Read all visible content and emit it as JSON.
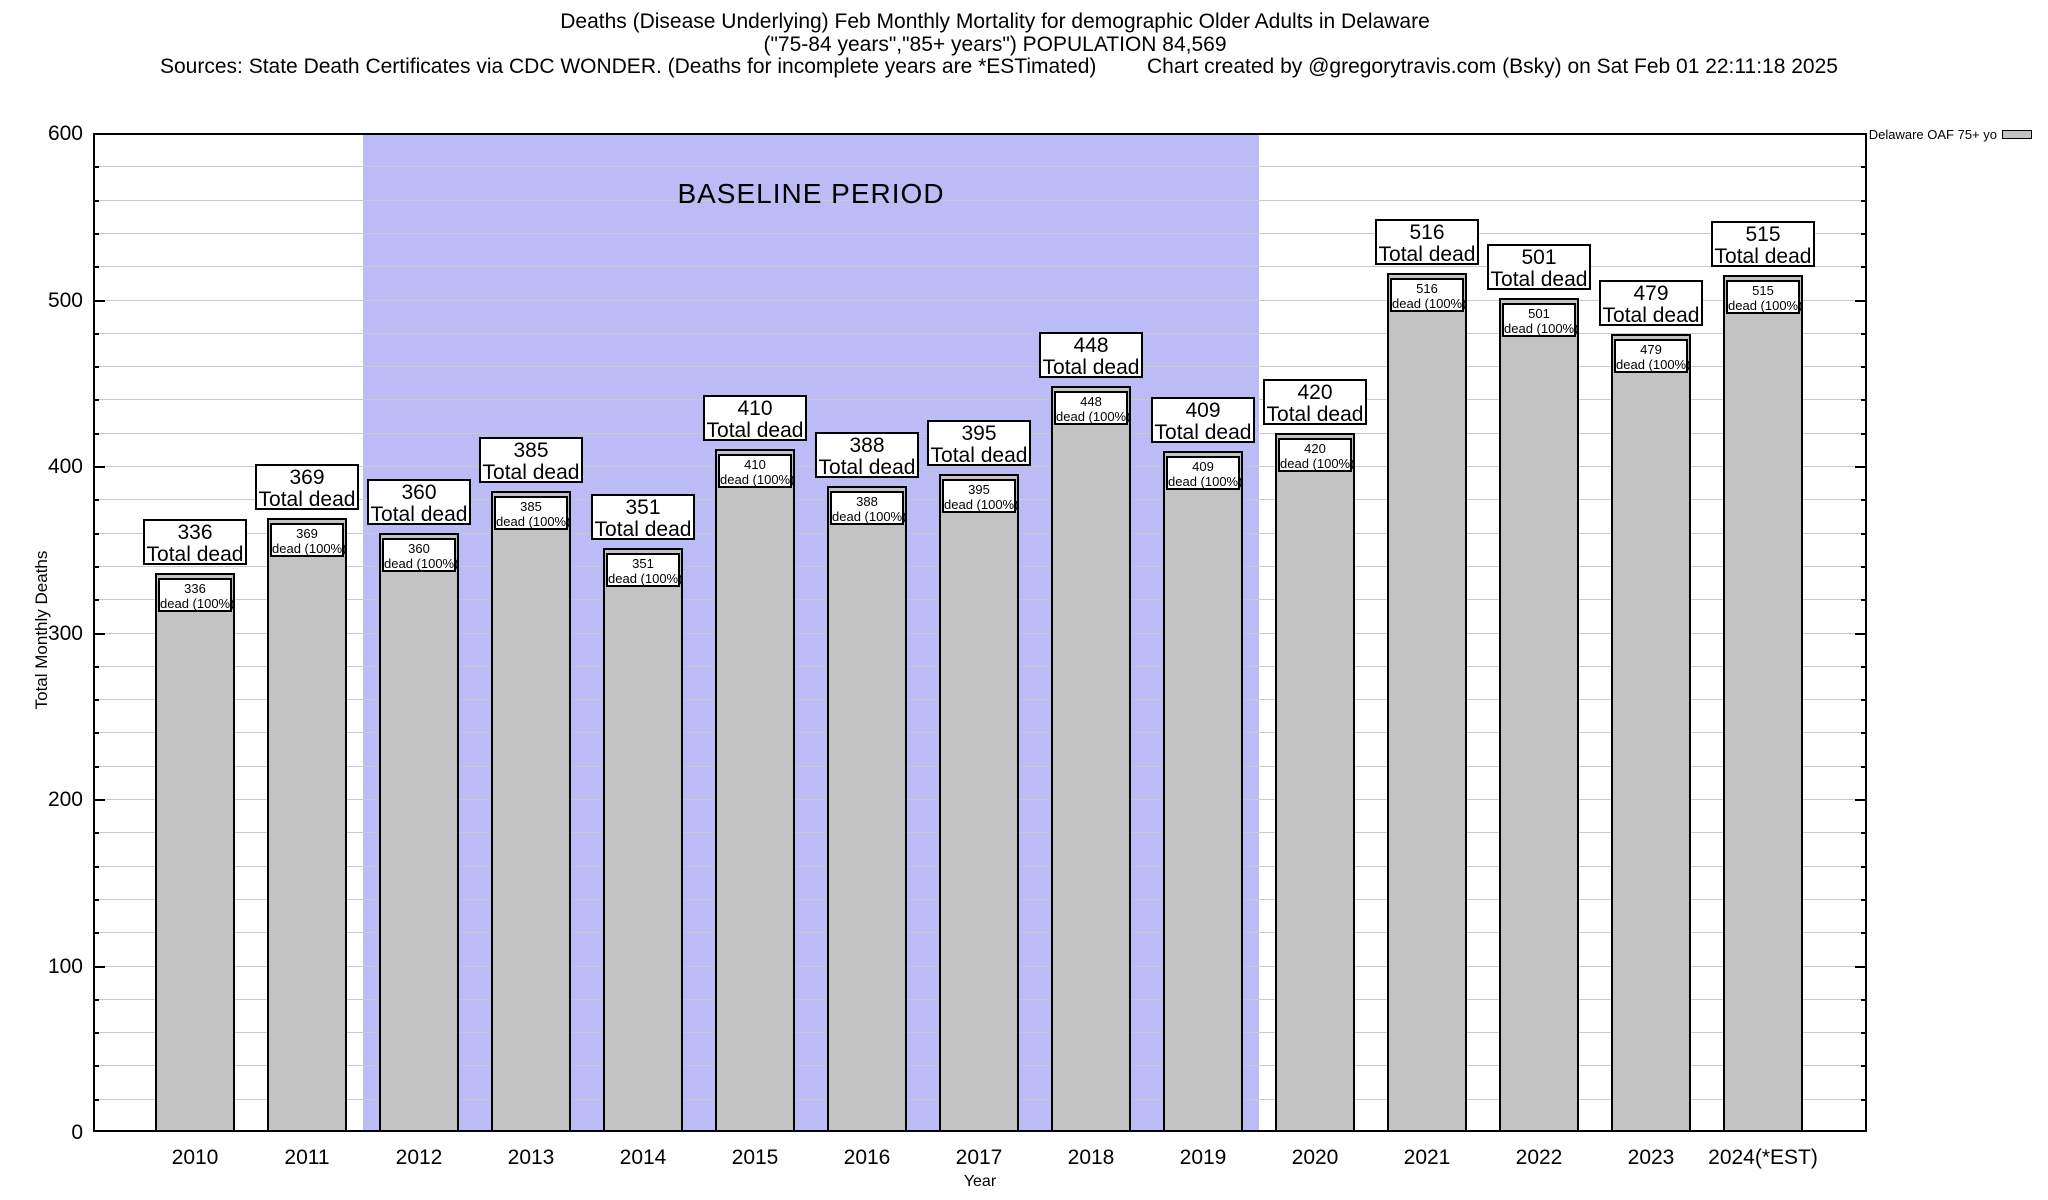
{
  "header": {
    "title_line1": "Deaths (Disease Underlying) Feb Monthly Mortality for demographic Older Adults in Delaware",
    "title_line2": "(\"75-84 years\",\"85+ years\") POPULATION 84,569",
    "title_line3_left": "Sources: State Death Certificates via CDC WONDER. (Deaths for incomplete years are *ESTimated)",
    "title_line3_right": "Chart created by @gregorytravis.com (Bsky) on Sat Feb 01 22:11:18 2025"
  },
  "legend": {
    "label": "Delaware OAF 75+ yo",
    "swatch_color": "#c3c3c3"
  },
  "baseline_region": {
    "label": "BASELINE PERIOD",
    "start_category": "2012",
    "end_category": "2019",
    "color": "#bbbbf5"
  },
  "chart_data": {
    "type": "bar",
    "title": "Deaths (Disease Underlying) Feb Monthly Mortality for demographic Older Adults in Delaware",
    "xlabel": "Year",
    "ylabel": "Total Monthly Deaths",
    "ylim": [
      0,
      600
    ],
    "ytick_interval": 100,
    "yminor_interval": 20,
    "grid": "horizontal-minor",
    "legend_position": "top-right-outside",
    "categories": [
      "2010",
      "2011",
      "2012",
      "2013",
      "2014",
      "2015",
      "2016",
      "2017",
      "2018",
      "2019",
      "2020",
      "2021",
      "2022",
      "2023",
      "2024(*EST)"
    ],
    "series": [
      {
        "name": "Delaware OAF 75+ yo",
        "values": [
          336,
          369,
          360,
          385,
          351,
          410,
          388,
          395,
          448,
          409,
          420,
          516,
          501,
          479,
          515
        ]
      }
    ],
    "bar_color": "#c3c3c3",
    "bar_label_line2": "Total dead",
    "inner_label_line2": "dead (100%)",
    "baseline_band": {
      "from_index": 2,
      "to_index": 9,
      "label": "BASELINE PERIOD"
    }
  }
}
